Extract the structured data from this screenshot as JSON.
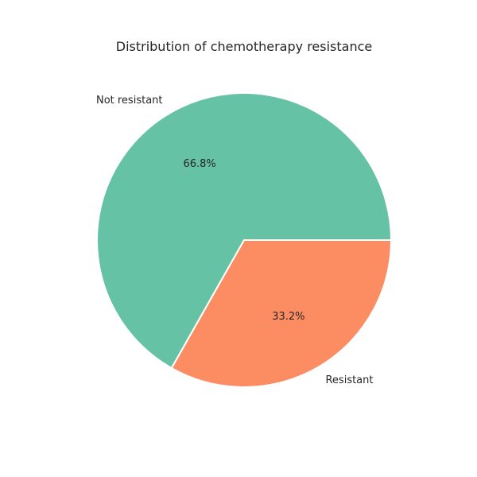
{
  "chart_data": {
    "type": "pie",
    "title": "Distribution of chemotherapy resistance",
    "labels": [
      "Not resistant",
      "Resistant"
    ],
    "values": [
      66.8,
      33.2
    ],
    "percent_labels": [
      "66.8%",
      "33.2%"
    ],
    "colors": [
      "#66c2a5",
      "#fc8d62"
    ],
    "start_angle_deg": 0,
    "direction": "counterclockwise"
  }
}
